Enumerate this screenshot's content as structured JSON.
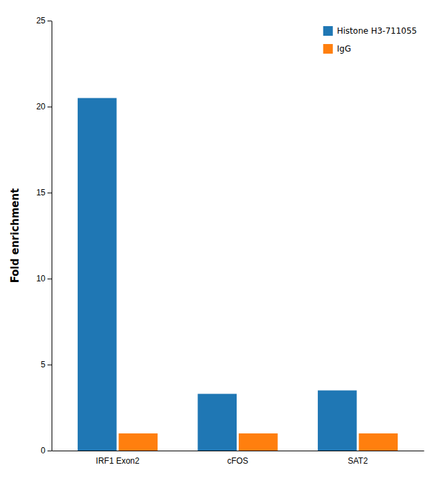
{
  "chart_data": {
    "type": "bar",
    "y_label": "Fold enrichment",
    "categories": [
      "IRF1 Exon2",
      "cFOS",
      "SAT2"
    ],
    "series": [
      {
        "name": "Histone H3-711055",
        "values": [
          20.5,
          3.3,
          3.5
        ]
      },
      {
        "name": "IgG",
        "values": [
          1.0,
          1.0,
          1.0
        ]
      }
    ],
    "ylim": [
      0,
      25
    ],
    "yticks": [
      0,
      5,
      10,
      15,
      20,
      25
    ],
    "grid": false,
    "legend": "upper right"
  }
}
